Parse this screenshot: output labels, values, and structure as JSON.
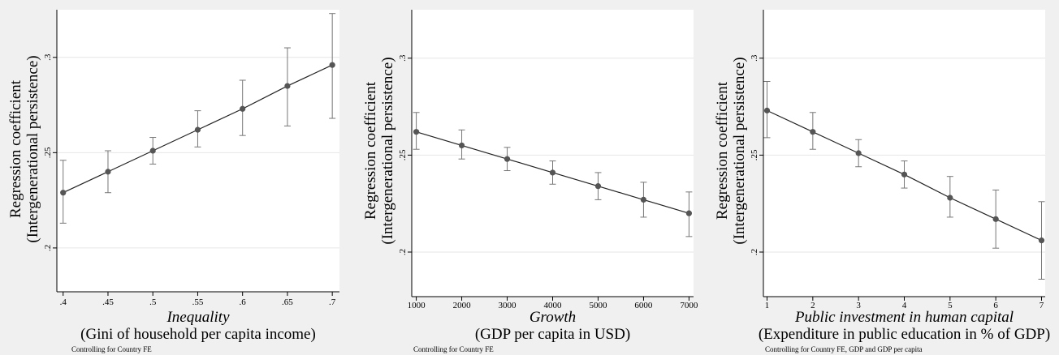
{
  "chart_data": [
    {
      "type": "line",
      "panel_id": "p1",
      "ylabel": [
        "Regression coefficient",
        "(Intergenerational persistence)"
      ],
      "xlabel_title": "Inequality",
      "xlabel_sub": "(Gini of household per capita income)",
      "note": "Controlling for Country FE",
      "ylim": [
        0.177,
        0.325
      ],
      "xlim": [
        0.393,
        0.708
      ],
      "yticks": [
        {
          "v": 0.2,
          "label": ".2"
        },
        {
          "v": 0.25,
          "label": ".25"
        },
        {
          "v": 0.3,
          "label": ".3"
        }
      ],
      "xticks": [
        {
          "v": 0.4,
          "label": ".4"
        },
        {
          "v": 0.45,
          "label": ".45"
        },
        {
          "v": 0.5,
          "label": ".5"
        },
        {
          "v": 0.55,
          "label": ".55"
        },
        {
          "v": 0.6,
          "label": ".6"
        },
        {
          "v": 0.65,
          "label": ".65"
        },
        {
          "v": 0.7,
          "label": ".7"
        }
      ],
      "points": [
        {
          "x": 0.4,
          "y": 0.229,
          "lo": 0.213,
          "hi": 0.246
        },
        {
          "x": 0.45,
          "y": 0.24,
          "lo": 0.229,
          "hi": 0.251
        },
        {
          "x": 0.5,
          "y": 0.251,
          "lo": 0.244,
          "hi": 0.258
        },
        {
          "x": 0.55,
          "y": 0.262,
          "lo": 0.253,
          "hi": 0.272
        },
        {
          "x": 0.6,
          "y": 0.273,
          "lo": 0.259,
          "hi": 0.288
        },
        {
          "x": 0.65,
          "y": 0.285,
          "lo": 0.264,
          "hi": 0.305
        },
        {
          "x": 0.7,
          "y": 0.296,
          "lo": 0.268,
          "hi": 0.323
        }
      ],
      "grid": true,
      "colors": {
        "line": "#222222",
        "marker": "#555555",
        "ci": "#777777",
        "grid": "#e6e6e6"
      }
    },
    {
      "type": "line",
      "panel_id": "p2",
      "ylabel": [
        "Regression coefficient",
        "(Intergenerational persistence)"
      ],
      "xlabel_title": "Growth",
      "xlabel_sub": "(GDP per capita in USD)",
      "note": "Controlling for Country FE",
      "ylim": [
        0.177,
        0.325
      ],
      "xlim": [
        900,
        7100
      ],
      "yticks": [
        {
          "v": 0.2,
          "label": ".2"
        },
        {
          "v": 0.25,
          "label": ".25"
        },
        {
          "v": 0.3,
          "label": ".3"
        }
      ],
      "xticks": [
        {
          "v": 1000,
          "label": "1000"
        },
        {
          "v": 2000,
          "label": "2000"
        },
        {
          "v": 3000,
          "label": "3000"
        },
        {
          "v": 4000,
          "label": "4000"
        },
        {
          "v": 5000,
          "label": "5000"
        },
        {
          "v": 6000,
          "label": "6000"
        },
        {
          "v": 7000,
          "label": "7000"
        }
      ],
      "points": [
        {
          "x": 1000,
          "y": 0.262,
          "lo": 0.253,
          "hi": 0.272
        },
        {
          "x": 2000,
          "y": 0.255,
          "lo": 0.248,
          "hi": 0.263
        },
        {
          "x": 3000,
          "y": 0.248,
          "lo": 0.242,
          "hi": 0.254
        },
        {
          "x": 4000,
          "y": 0.241,
          "lo": 0.235,
          "hi": 0.247
        },
        {
          "x": 5000,
          "y": 0.234,
          "lo": 0.227,
          "hi": 0.241
        },
        {
          "x": 6000,
          "y": 0.227,
          "lo": 0.218,
          "hi": 0.236
        },
        {
          "x": 7000,
          "y": 0.22,
          "lo": 0.208,
          "hi": 0.231
        }
      ],
      "grid": true,
      "colors": {
        "line": "#222222",
        "marker": "#555555",
        "ci": "#777777",
        "grid": "#e6e6e6"
      }
    },
    {
      "type": "line",
      "panel_id": "p3",
      "ylabel": [
        "Regression coefficient",
        "(Intergenerational persistence)"
      ],
      "xlabel_title": "Public investment in human capital",
      "xlabel_sub": "(Expenditure in public education in % of GDP)",
      "note": "Controlling for Country FE, GDP and GDP per capita",
      "ylim": [
        0.177,
        0.325
      ],
      "xlim": [
        0.92,
        7.08
      ],
      "yticks": [
        {
          "v": 0.2,
          "label": ".2"
        },
        {
          "v": 0.25,
          "label": ".25"
        },
        {
          "v": 0.3,
          "label": ".3"
        }
      ],
      "xticks": [
        {
          "v": 1,
          "label": "1"
        },
        {
          "v": 2,
          "label": "2"
        },
        {
          "v": 3,
          "label": "3"
        },
        {
          "v": 4,
          "label": "4"
        },
        {
          "v": 5,
          "label": "5"
        },
        {
          "v": 6,
          "label": "6"
        },
        {
          "v": 7,
          "label": "7"
        }
      ],
      "points": [
        {
          "x": 1,
          "y": 0.273,
          "lo": 0.259,
          "hi": 0.288
        },
        {
          "x": 2,
          "y": 0.262,
          "lo": 0.253,
          "hi": 0.272
        },
        {
          "x": 3,
          "y": 0.251,
          "lo": 0.244,
          "hi": 0.258
        },
        {
          "x": 4,
          "y": 0.24,
          "lo": 0.233,
          "hi": 0.247
        },
        {
          "x": 5,
          "y": 0.228,
          "lo": 0.218,
          "hi": 0.239
        },
        {
          "x": 6,
          "y": 0.217,
          "lo": 0.202,
          "hi": 0.232
        },
        {
          "x": 7,
          "y": 0.206,
          "lo": 0.186,
          "hi": 0.226
        }
      ],
      "grid": true,
      "colors": {
        "line": "#222222",
        "marker": "#555555",
        "ci": "#777777",
        "grid": "#e6e6e6"
      }
    }
  ]
}
